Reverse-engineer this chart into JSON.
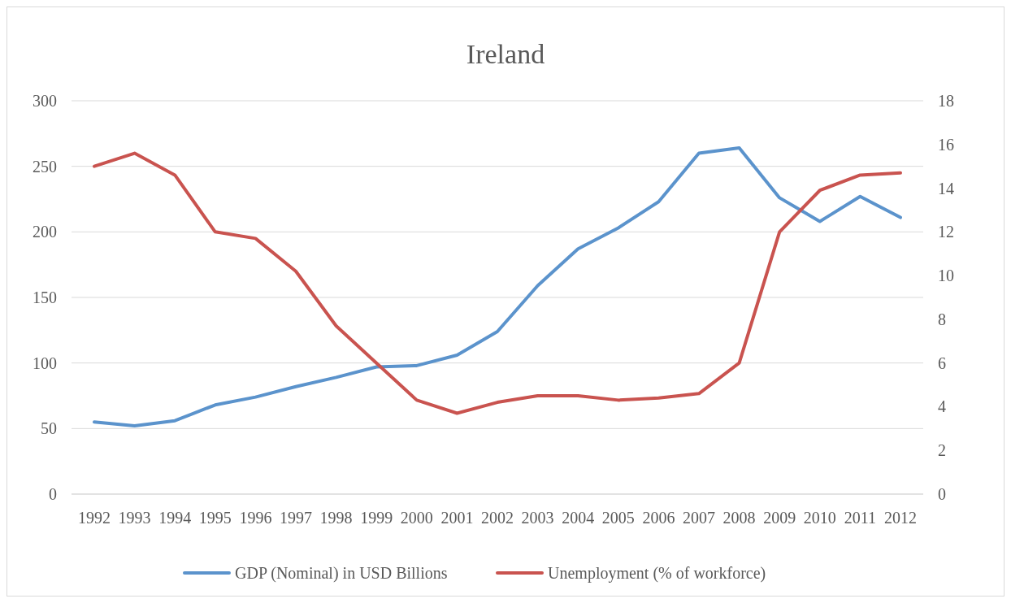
{
  "chart_data": {
    "type": "line",
    "title": "Ireland",
    "categories": [
      "1992",
      "1993",
      "1994",
      "1995",
      "1996",
      "1997",
      "1998",
      "1999",
      "2000",
      "2001",
      "2002",
      "2003",
      "2004",
      "2005",
      "2006",
      "2007",
      "2008",
      "2009",
      "2010",
      "2011",
      "2012"
    ],
    "series": [
      {
        "name": "GDP (Nominal) in USD Billions",
        "color": "#5b93cc",
        "values": [
          55,
          52,
          56,
          68,
          74,
          82,
          89,
          97,
          98,
          106,
          124,
          159,
          187,
          203,
          223,
          260,
          264,
          226,
          208,
          227,
          211
        ]
      },
      {
        "name": "Unemployment (% of workforce)",
        "color": "#c9534f",
        "axis": "y2",
        "values": [
          15.0,
          15.6,
          14.6,
          12.0,
          11.7,
          10.2,
          7.7,
          6.0,
          4.3,
          3.7,
          4.2,
          4.5,
          4.5,
          4.3,
          4.4,
          4.6,
          6.0,
          12.0,
          13.9,
          14.6,
          14.7
        ]
      }
    ],
    "ylim": [
      0,
      300
    ],
    "yticks": [
      0,
      50,
      100,
      150,
      200,
      250,
      300
    ],
    "y2lim": [
      0,
      18
    ],
    "y2ticks": [
      0,
      2,
      4,
      6,
      8,
      10,
      12,
      14,
      16,
      18
    ],
    "grid": "y",
    "legend": "bottom",
    "line_style": "solid"
  }
}
